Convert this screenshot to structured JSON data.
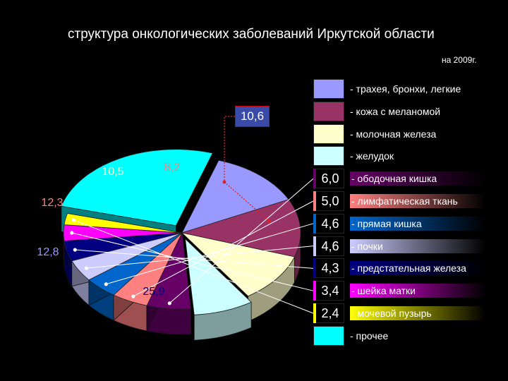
{
  "title": "структура онкологических заболеваний Иркутской области",
  "subtitle": "на 2009г.",
  "chart_data": {
    "type": "pie",
    "title": "структура онкологических заболеваний Иркутской области",
    "subtitle": "на 2009г.",
    "legend_position": "right",
    "series": [
      {
        "label": "- трахея, бронхи, легкие",
        "value": 12.8,
        "value_label": "12,8",
        "color": "#9999ff"
      },
      {
        "label": "- кожа с меланомой",
        "value": 12.3,
        "value_label": "12,3",
        "color": "#993366"
      },
      {
        "label": "- молочная железа",
        "value": 10.5,
        "value_label": "10,5",
        "color": "#ffffcc"
      },
      {
        "label": "- желудок",
        "value": 8.2,
        "value_label": "8,2",
        "color": "#ccffff"
      },
      {
        "label": "- ободочная кишка",
        "value": 6.0,
        "value_label": "6,0",
        "color": "#660066"
      },
      {
        "label": "- лимфатическая ткань",
        "value": 5.0,
        "value_label": "5,0",
        "color": "#ff8080"
      },
      {
        "label": "- прямая кишка",
        "value": 4.6,
        "value_label": "4,6",
        "color": "#0066cc"
      },
      {
        "label": "- почки",
        "value": 4.6,
        "value_label": "4,6",
        "color": "#ccccff"
      },
      {
        "label": "- предстательная железа",
        "value": 4.3,
        "value_label": "4,3",
        "color": "#000080"
      },
      {
        "label": "- шейка матки",
        "value": 3.4,
        "value_label": "3,4",
        "color": "#ff00ff"
      },
      {
        "label": "- мочевой пузырь",
        "value": 2.4,
        "value_label": "2,4",
        "color": "#ffff00"
      },
      {
        "label": "- прочее",
        "value": 25.9,
        "value_label": "25,9",
        "color": "#00ffff"
      }
    ],
    "callout": {
      "value_label": "10,6"
    }
  }
}
